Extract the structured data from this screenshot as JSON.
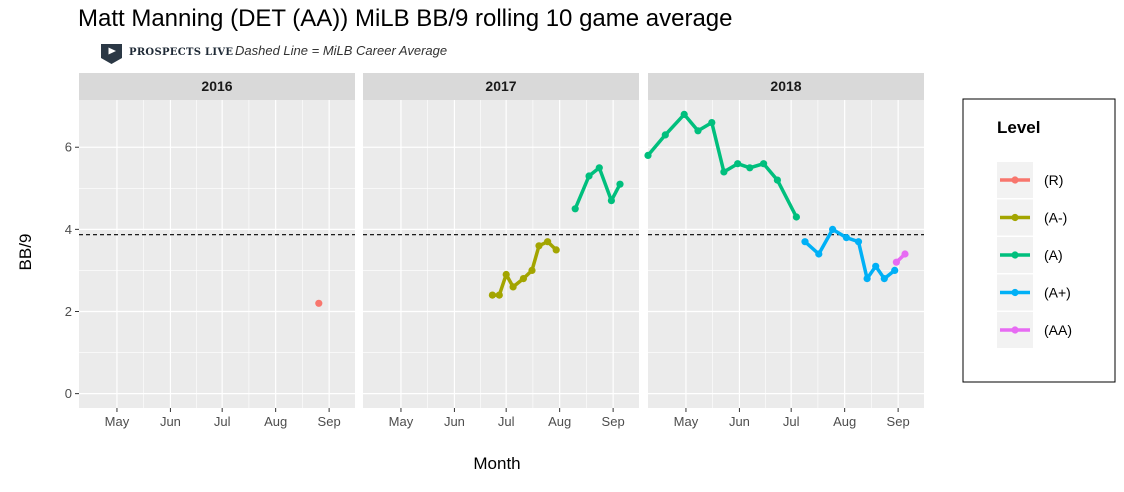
{
  "header": {
    "title": "Matt Manning (DET (AA)) MiLB BB/9 rolling 10 game average",
    "logo_text": "PROSPECTS LIVE",
    "subtitle": "Dashed Line = MiLB Career Average"
  },
  "chart_data": {
    "type": "line",
    "title": "Matt Manning (DET (AA)) MiLB BB/9 rolling 10 game average",
    "subtitle": "Dashed Line = MiLB Career Average",
    "xlabel": "Month",
    "ylabel": "BB/9",
    "ylim": [
      -0.35,
      7.15
    ],
    "y_ticks": [
      0,
      2,
      4,
      6
    ],
    "x_ticks": [
      "May",
      "Jun",
      "Jul",
      "Aug",
      "Sep"
    ],
    "career_average": 3.87,
    "grid": true,
    "legend_position": "right",
    "legend_title": "Level",
    "levels": [
      {
        "name": "(R)",
        "color": "#f8766d"
      },
      {
        "name": "(A-)",
        "color": "#a3a500"
      },
      {
        "name": "(A)",
        "color": "#00bf7d"
      },
      {
        "name": "(A+)",
        "color": "#00b0f6"
      },
      {
        "name": "(AA)",
        "color": "#e76bf3"
      }
    ],
    "panels": [
      {
        "label": "2016",
        "series": [
          {
            "level": "(R)",
            "x": [
              "2016-08-26"
            ],
            "y": [
              2.2
            ]
          }
        ]
      },
      {
        "label": "2017",
        "series": [
          {
            "level": "(A-)",
            "x": [
              "2017-06-24",
              "2017-06-28",
              "2017-07-02",
              "2017-07-06",
              "2017-07-12",
              "2017-07-17",
              "2017-07-21",
              "2017-07-26",
              "2017-07-31"
            ],
            "y": [
              2.4,
              2.4,
              2.9,
              2.6,
              2.8,
              3.0,
              3.6,
              3.7,
              3.5
            ]
          },
          {
            "level": "(A)",
            "x": [
              "2017-08-11",
              "2017-08-19",
              "2017-08-25",
              "2017-09-01",
              "2017-09-06"
            ],
            "y": [
              4.5,
              5.3,
              5.5,
              4.7,
              5.1
            ]
          }
        ]
      },
      {
        "label": "2018",
        "series": [
          {
            "level": "(A)",
            "x": [
              "2018-04-10",
              "2018-04-20",
              "2018-05-01",
              "2018-05-09",
              "2018-05-17",
              "2018-05-24",
              "2018-06-01",
              "2018-06-08",
              "2018-06-16",
              "2018-06-24",
              "2018-07-05"
            ],
            "y": [
              5.8,
              6.3,
              6.8,
              6.4,
              6.6,
              5.4,
              5.6,
              5.5,
              5.6,
              5.2,
              4.3
            ]
          },
          {
            "level": "(A+)",
            "x": [
              "2018-07-10",
              "2018-07-18",
              "2018-07-26",
              "2018-08-03",
              "2018-08-10",
              "2018-08-15",
              "2018-08-20",
              "2018-08-25",
              "2018-08-31"
            ],
            "y": [
              3.7,
              3.4,
              4.0,
              3.8,
              3.7,
              2.8,
              3.1,
              2.8,
              3.0
            ]
          },
          {
            "level": "(AA)",
            "x": [
              "2018-09-01",
              "2018-09-06"
            ],
            "y": [
              3.2,
              3.4
            ]
          }
        ]
      }
    ]
  }
}
